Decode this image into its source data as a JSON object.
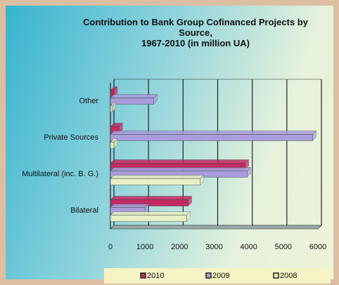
{
  "chart_data": {
    "type": "hbar3d",
    "title": "Contribution to Bank Group Cofinanced Projects by Source,",
    "subtitle": "1967-2010 (in million UA)",
    "categories": [
      "Bilateral",
      "Multilateral (inc. B. G.)",
      "Private Sources",
      "Other"
    ],
    "series": [
      {
        "name": "2010",
        "color": "#c42a62",
        "values": [
          2250,
          3900,
          250,
          100
        ]
      },
      {
        "name": "2009",
        "color": "#a99ddc",
        "values": [
          1000,
          3950,
          5850,
          1250
        ]
      },
      {
        "name": "2008",
        "color": "#e8efc4",
        "values": [
          2200,
          2600,
          100,
          50
        ]
      }
    ],
    "xlim": [
      0,
      6000
    ],
    "xticks": [
      0,
      1000,
      2000,
      3000,
      4000,
      5000,
      6000
    ],
    "grid": true
  }
}
